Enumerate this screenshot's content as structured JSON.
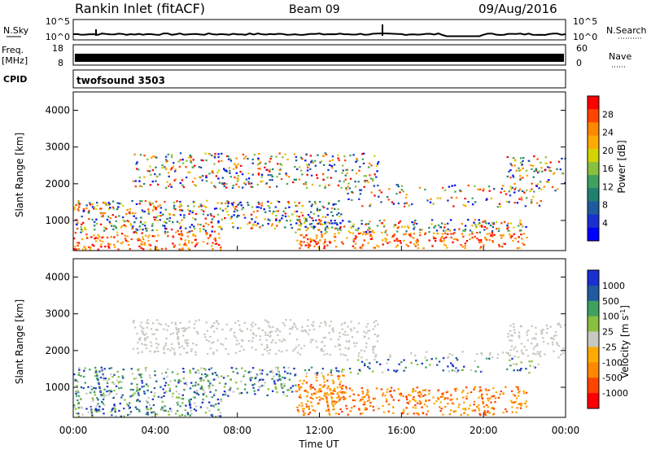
{
  "header": {
    "station": "Rankin Inlet (fitACF)",
    "beam": "Beam 09",
    "date": "09/Aug/2016"
  },
  "info_panels": {
    "nsky_label": "N.Sky",
    "nsky_ticks": [
      "10^5",
      "10^0"
    ],
    "nsearch_label": "N.Search",
    "nsearch_ticks": [
      "10^5",
      "10^0"
    ],
    "freq_label": "Freq.",
    "freq_unit": "[MHz]",
    "freq_ticks": [
      "18",
      "8"
    ],
    "nave_label": "Nave",
    "nave_ticks": [
      "60",
      "0"
    ],
    "cpid_label": "CPID",
    "cpid_value": "twofsound 3503"
  },
  "chart_data": [
    {
      "type": "heatmap",
      "name": "power-panel",
      "ylabel": "Slant Range [km]",
      "ylim": [
        180,
        4500
      ],
      "yticks": [
        "1000",
        "2000",
        "3000",
        "4000"
      ],
      "xlim": [
        "00:00",
        "24:00"
      ],
      "colorbar": {
        "label": "Power [dB]",
        "ticks": [
          "28",
          "24",
          "20",
          "16",
          "12",
          "8",
          "4"
        ],
        "colors": [
          "#ff0000",
          "#ff4400",
          "#ff8800",
          "#ffaa00",
          "#d4d400",
          "#88c040",
          "#40a060",
          "#208070",
          "#205aa0",
          "#1a30d0",
          "#0000ff"
        ]
      }
    },
    {
      "type": "heatmap",
      "name": "velocity-panel",
      "ylabel": "Slant Range [km]",
      "ylim": [
        180,
        4500
      ],
      "yticks": [
        "1000",
        "2000",
        "3000",
        "4000"
      ],
      "xlim": [
        "00:00",
        "24:00"
      ],
      "xlabel": "Time UT",
      "xticks": [
        "00:00",
        "04:00",
        "08:00",
        "12:00",
        "16:00",
        "20:00",
        "00:00"
      ],
      "colorbar": {
        "label": "Velocity [m s-1]",
        "ticks": [
          "1000",
          "500",
          "100",
          "25",
          "-25",
          "-100",
          "-500",
          "-1000"
        ],
        "colors": [
          "#1a30d0",
          "#205aa0",
          "#40a060",
          "#88c040",
          "#c8c8c0",
          "#ffaa00",
          "#ff8800",
          "#ff4400",
          "#ff0000"
        ]
      }
    }
  ]
}
